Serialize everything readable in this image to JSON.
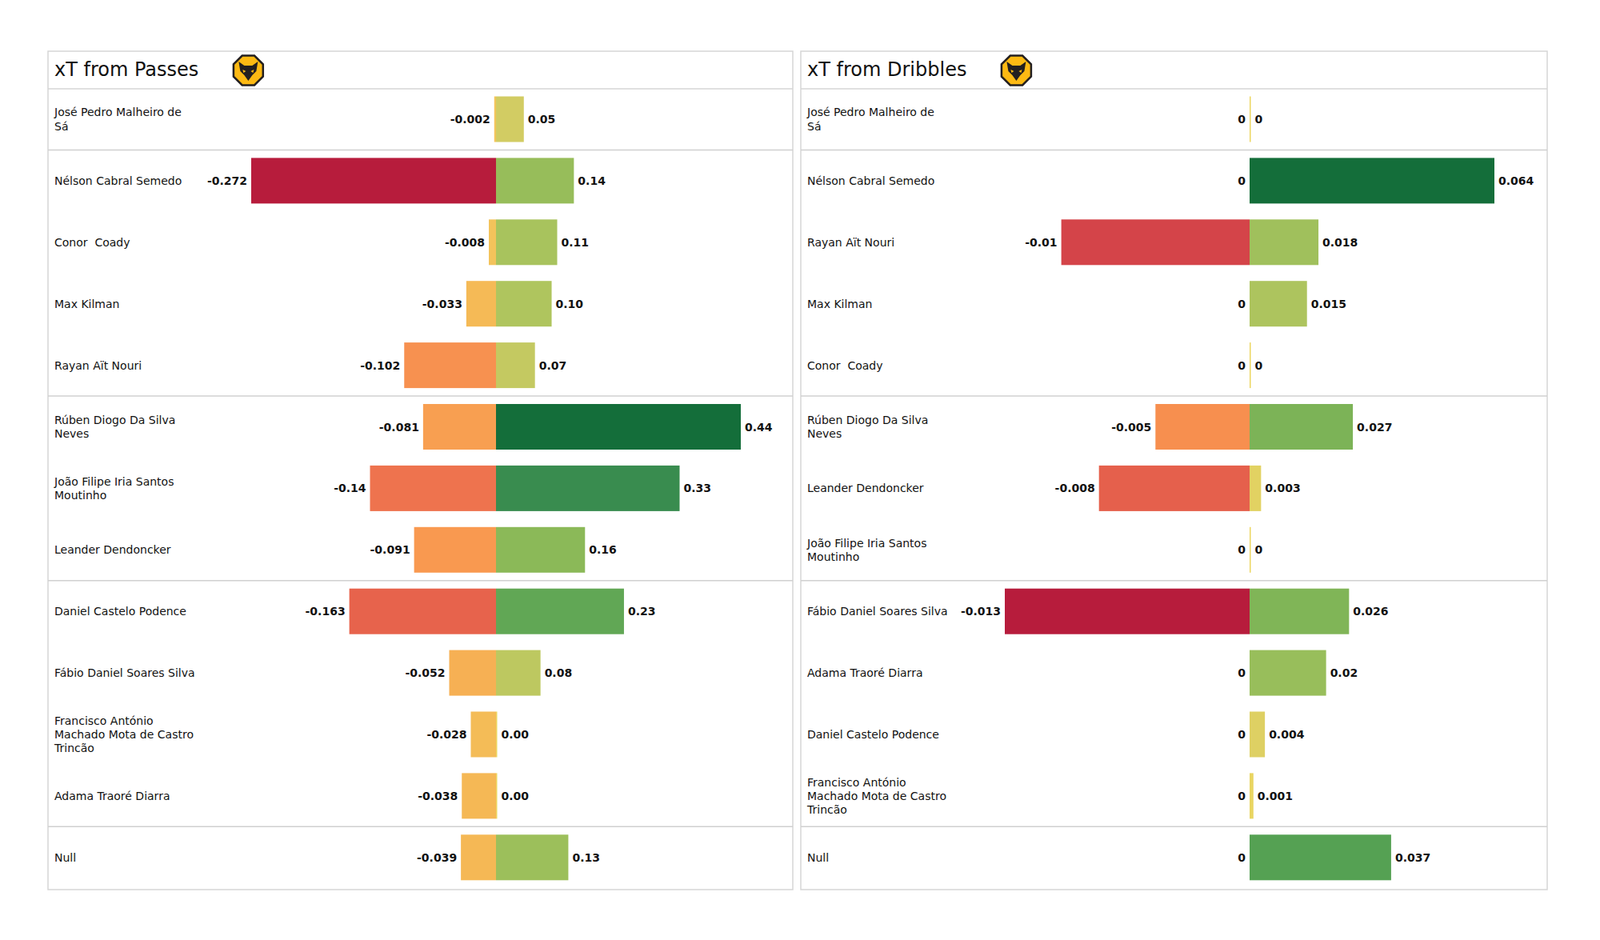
{
  "chart_data": [
    {
      "type": "bar",
      "orientation": "horizontal",
      "title": "xT from Passes",
      "data_labels": true,
      "tick_labels": false,
      "xlim": [
        -0.272,
        0.44
      ],
      "categories": [
        "José Pedro Malheiro de\nSá",
        "Nélson Cabral Semedo",
        "Conor  Coady",
        "Max Kilman",
        "Rayan Aït Nouri",
        "Rúben Diogo Da Silva\nNeves",
        "João Filipe Iria Santos\nMoutinho",
        "Leander Dendoncker",
        "Daniel Castelo Podence",
        "Fábio Daniel Soares Silva",
        "Francisco António\nMachado Mota de Castro\nTrincão",
        "Adama Traoré Diarra",
        "Null"
      ],
      "series": [
        {
          "values": [
            -0.002,
            -0.272,
            -0.008,
            -0.033,
            -0.102,
            -0.081,
            -0.14,
            -0.091,
            -0.163,
            -0.052,
            -0.028,
            -0.038,
            -0.039
          ],
          "value_labels": [
            "-0.002",
            "-0.272",
            "-0.008",
            "-0.033",
            "-0.102",
            "-0.081",
            "-0.14",
            "-0.091",
            "-0.163",
            "-0.052",
            "-0.028",
            "-0.038",
            "-0.039"
          ]
        },
        {
          "values": [
            0.05,
            0.14,
            0.11,
            0.1,
            0.07,
            0.44,
            0.33,
            0.16,
            0.23,
            0.08,
            0,
            0,
            0.13
          ],
          "value_labels": [
            "0.05",
            "0.14",
            "0.11",
            "0.10",
            "0.07",
            "0.44",
            "0.33",
            "0.16",
            "0.23",
            "0.08",
            "0.00",
            "0.00",
            "0.13"
          ]
        }
      ]
    },
    {
      "type": "bar",
      "orientation": "horizontal",
      "title": "xT from Dribbles",
      "data_labels": true,
      "tick_labels": false,
      "xlim": [
        -0.013,
        0.064
      ],
      "categories": [
        "José Pedro Malheiro de\nSá",
        "Nélson Cabral Semedo",
        "Rayan Aït Nouri",
        "Max Kilman",
        "Conor  Coady",
        "Rúben Diogo Da Silva\nNeves",
        "Leander Dendoncker",
        "João Filipe Iria Santos\nMoutinho",
        "Fábio Daniel Soares Silva",
        "Adama Traoré Diarra",
        "Daniel Castelo Podence",
        "Francisco António\nMachado Mota de Castro\nTrincão",
        "Null"
      ],
      "series": [
        {
          "values": [
            0,
            0,
            -0.01,
            0,
            0,
            -0.005,
            -0.008,
            0,
            -0.013,
            0,
            0,
            0,
            0
          ],
          "value_labels": [
            "0",
            "0",
            "-0.01",
            "0",
            "0",
            "-0.005",
            "-0.008",
            "0",
            "-0.013",
            "0",
            "0",
            "0",
            "0"
          ]
        },
        {
          "values": [
            0,
            0.064,
            0.018,
            0.015,
            0,
            0.027,
            0.003,
            0,
            0.026,
            0.02,
            0.004,
            0.001,
            0.037
          ],
          "value_labels": [
            "0",
            "0.064",
            "0.018",
            "0.015",
            "0",
            "0.027",
            "0.003",
            "0",
            "0.026",
            "0.02",
            "0.004",
            "0.001",
            "0.037"
          ]
        }
      ]
    }
  ]
}
